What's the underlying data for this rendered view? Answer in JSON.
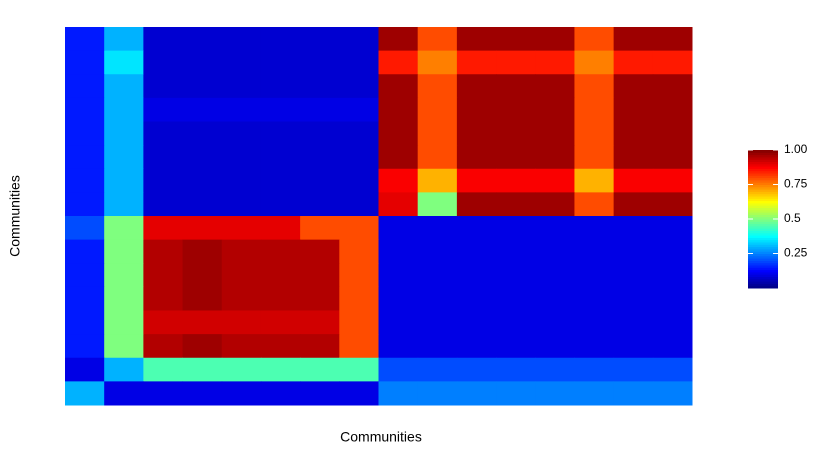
{
  "chart_data": {
    "type": "heatmap",
    "x_label": "Communities",
    "y_label": "Communities",
    "zlim": [
      0,
      1
    ],
    "zticks": [
      0.25,
      0.5,
      0.75,
      {
        "value": 1,
        "label": "1.00"
      }
    ],
    "colormap": [
      "#00007F",
      "#0000FF",
      "#007FFF",
      "#00FFFF",
      "#7FFF7F",
      "#FFFF00",
      "#FF7F00",
      "#FF0000",
      "#7F0000"
    ],
    "z": [
      [
        0.15,
        0.3,
        0.08,
        0.08,
        0.08,
        0.08,
        0.08,
        0.08,
        0.97,
        0.8,
        0.97,
        0.97,
        0.97,
        0.8,
        0.97,
        0.97
      ],
      [
        0.15,
        0.35,
        0.08,
        0.08,
        0.08,
        0.08,
        0.08,
        0.08,
        0.85,
        0.75,
        0.85,
        0.85,
        0.85,
        0.75,
        0.85,
        0.85
      ],
      [
        0.15,
        0.3,
        0.08,
        0.08,
        0.08,
        0.08,
        0.08,
        0.08,
        0.97,
        0.8,
        0.97,
        0.97,
        0.97,
        0.8,
        0.97,
        0.97
      ],
      [
        0.15,
        0.3,
        0.1,
        0.1,
        0.1,
        0.1,
        0.1,
        0.1,
        0.97,
        0.8,
        0.97,
        0.97,
        0.97,
        0.8,
        0.97,
        0.97
      ],
      [
        0.15,
        0.3,
        0.08,
        0.08,
        0.08,
        0.08,
        0.08,
        0.08,
        0.97,
        0.8,
        0.97,
        0.97,
        0.97,
        0.8,
        0.97,
        0.97
      ],
      [
        0.15,
        0.3,
        0.08,
        0.08,
        0.08,
        0.08,
        0.08,
        0.08,
        0.97,
        0.8,
        0.97,
        0.97,
        0.97,
        0.8,
        0.97,
        0.97
      ],
      [
        0.15,
        0.3,
        0.08,
        0.08,
        0.08,
        0.08,
        0.08,
        0.08,
        0.88,
        0.7,
        0.88,
        0.88,
        0.88,
        0.7,
        0.88,
        0.88
      ],
      [
        0.15,
        0.3,
        0.08,
        0.08,
        0.08,
        0.08,
        0.08,
        0.08,
        0.9,
        0.5,
        0.97,
        0.97,
        0.97,
        0.8,
        0.97,
        0.97
      ],
      [
        0.2,
        0.5,
        0.9,
        0.9,
        0.9,
        0.9,
        0.8,
        0.8,
        0.1,
        0.1,
        0.1,
        0.1,
        0.1,
        0.1,
        0.1,
        0.1
      ],
      [
        0.15,
        0.5,
        0.95,
        0.97,
        0.95,
        0.95,
        0.95,
        0.8,
        0.1,
        0.1,
        0.1,
        0.1,
        0.1,
        0.1,
        0.1,
        0.1
      ],
      [
        0.15,
        0.5,
        0.95,
        0.97,
        0.95,
        0.95,
        0.95,
        0.8,
        0.1,
        0.1,
        0.1,
        0.1,
        0.1,
        0.1,
        0.1,
        0.1
      ],
      [
        0.15,
        0.5,
        0.95,
        0.97,
        0.95,
        0.95,
        0.95,
        0.8,
        0.1,
        0.1,
        0.1,
        0.1,
        0.1,
        0.1,
        0.1,
        0.1
      ],
      [
        0.15,
        0.5,
        0.92,
        0.92,
        0.92,
        0.92,
        0.92,
        0.8,
        0.1,
        0.1,
        0.1,
        0.1,
        0.1,
        0.1,
        0.1,
        0.1
      ],
      [
        0.15,
        0.5,
        0.95,
        0.97,
        0.95,
        0.95,
        0.95,
        0.8,
        0.1,
        0.1,
        0.1,
        0.1,
        0.1,
        0.1,
        0.1,
        0.1
      ],
      [
        0.1,
        0.3,
        0.45,
        0.45,
        0.45,
        0.45,
        0.45,
        0.45,
        0.2,
        0.2,
        0.2,
        0.2,
        0.2,
        0.2,
        0.2,
        0.2
      ],
      [
        0.3,
        0.1,
        0.1,
        0.1,
        0.1,
        0.1,
        0.1,
        0.1,
        0.25,
        0.25,
        0.25,
        0.25,
        0.25,
        0.25,
        0.25,
        0.25
      ]
    ]
  }
}
